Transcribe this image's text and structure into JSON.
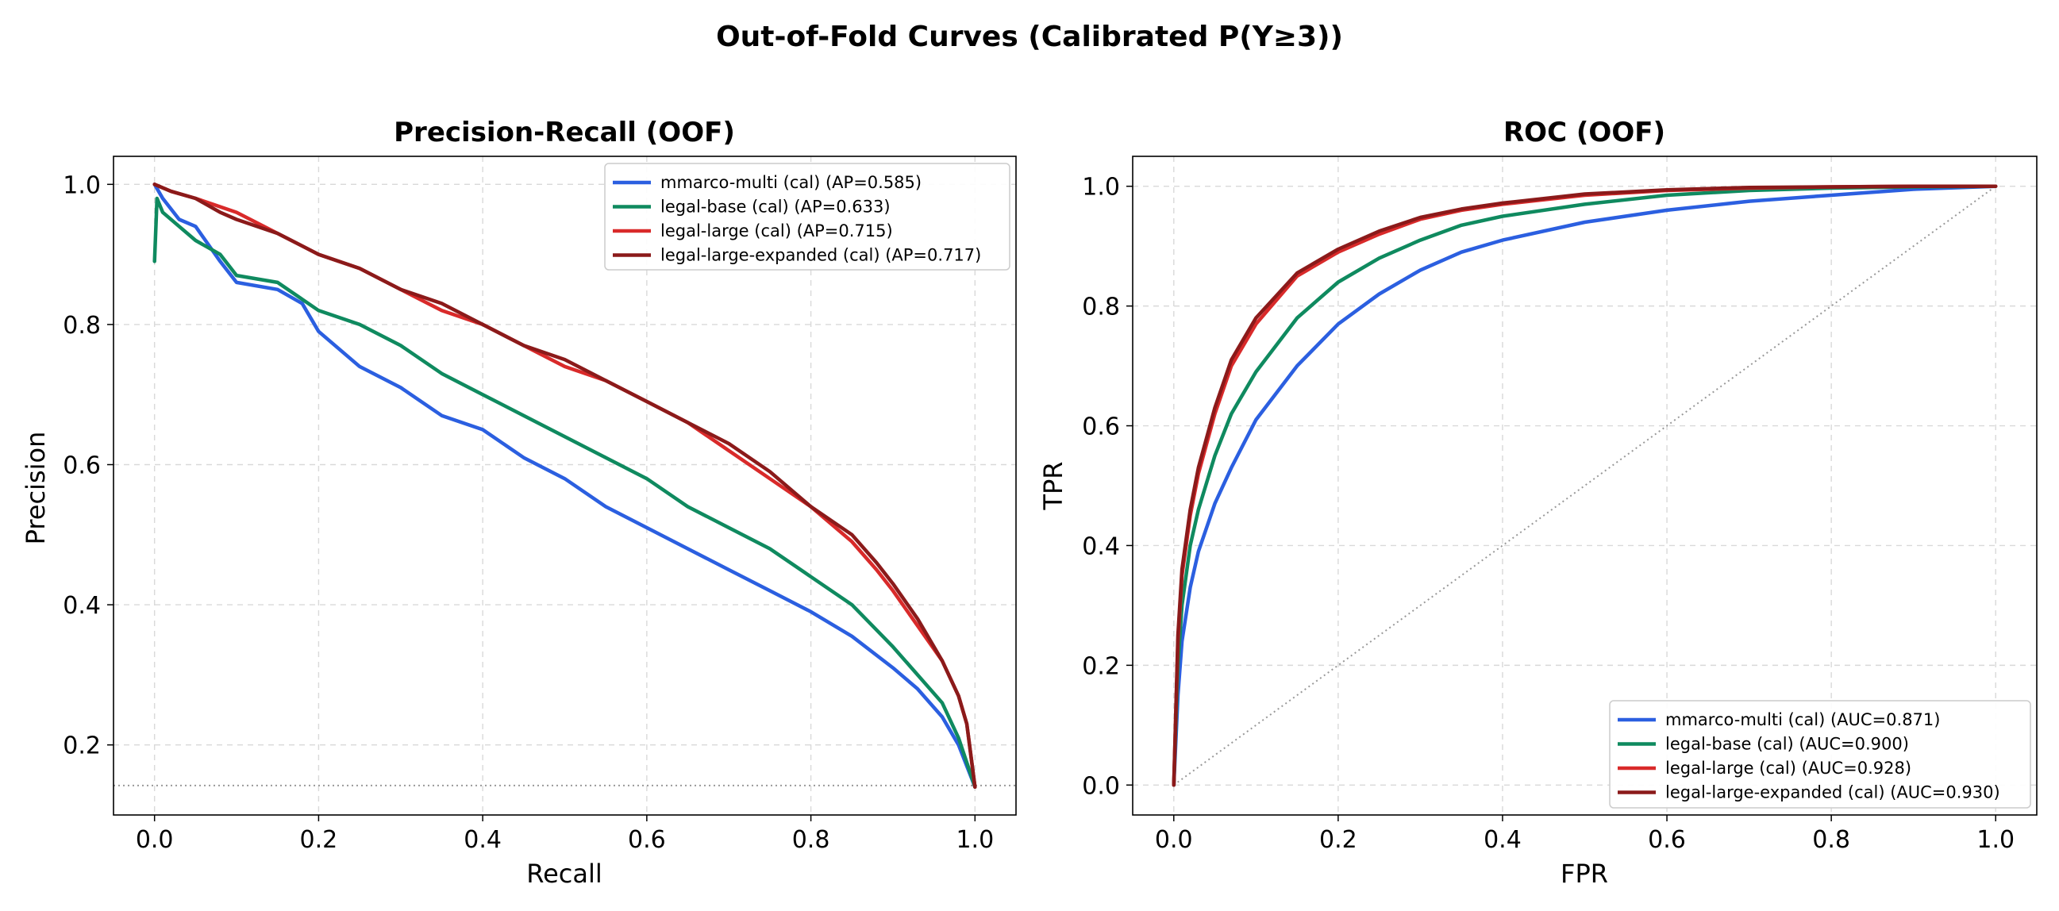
{
  "title": "Out-of-Fold Curves (Calibrated P(Y≥3))",
  "colors": {
    "mmarco-multi": "#2b5fe0",
    "legal-base": "#0f8a5f",
    "legal-large": "#d92a2a",
    "legal-large-expanded": "#8b1a1a"
  },
  "chart_data": [
    {
      "type": "line",
      "title": "Precision-Recall (OOF)",
      "xlabel": "Recall",
      "ylabel": "Precision",
      "xlim": [
        -0.05,
        1.05
      ],
      "ylim": [
        0.1,
        1.04
      ],
      "xticks": [
        "0.0",
        "0.2",
        "0.4",
        "0.6",
        "0.8",
        "1.0"
      ],
      "yticks": [
        "0.2",
        "0.4",
        "0.6",
        "0.8",
        "1.0"
      ],
      "grid": true,
      "legend_position": "top-right",
      "baseline": {
        "style": "dotted",
        "y": 0.142
      },
      "series": [
        {
          "name": "mmarco-multi (cal) (AP=0.585)",
          "color": "#2b5fe0",
          "x": [
            0.0,
            0.01,
            0.03,
            0.05,
            0.08,
            0.1,
            0.15,
            0.18,
            0.2,
            0.25,
            0.3,
            0.35,
            0.4,
            0.45,
            0.5,
            0.55,
            0.6,
            0.65,
            0.7,
            0.75,
            0.8,
            0.85,
            0.9,
            0.93,
            0.96,
            0.98,
            1.0
          ],
          "y": [
            1.0,
            0.98,
            0.95,
            0.94,
            0.89,
            0.86,
            0.85,
            0.83,
            0.79,
            0.74,
            0.71,
            0.67,
            0.65,
            0.61,
            0.58,
            0.54,
            0.51,
            0.48,
            0.45,
            0.42,
            0.39,
            0.355,
            0.31,
            0.28,
            0.24,
            0.2,
            0.14
          ]
        },
        {
          "name": "legal-base (cal) (AP=0.633)",
          "color": "#0f8a5f",
          "x": [
            0.0,
            0.003,
            0.01,
            0.03,
            0.05,
            0.08,
            0.1,
            0.15,
            0.2,
            0.25,
            0.3,
            0.35,
            0.4,
            0.45,
            0.5,
            0.55,
            0.6,
            0.65,
            0.7,
            0.75,
            0.8,
            0.85,
            0.9,
            0.93,
            0.96,
            0.98,
            1.0
          ],
          "y": [
            0.89,
            0.98,
            0.96,
            0.94,
            0.92,
            0.9,
            0.87,
            0.86,
            0.82,
            0.8,
            0.77,
            0.73,
            0.7,
            0.67,
            0.64,
            0.61,
            0.58,
            0.54,
            0.51,
            0.48,
            0.44,
            0.4,
            0.34,
            0.3,
            0.26,
            0.21,
            0.14
          ]
        },
        {
          "name": "legal-large (cal) (AP=0.715)",
          "color": "#d92a2a",
          "x": [
            0.0,
            0.02,
            0.05,
            0.1,
            0.15,
            0.2,
            0.25,
            0.3,
            0.35,
            0.4,
            0.45,
            0.5,
            0.55,
            0.6,
            0.65,
            0.7,
            0.75,
            0.8,
            0.85,
            0.88,
            0.9,
            0.93,
            0.96,
            0.98,
            0.99,
            1.0
          ],
          "y": [
            1.0,
            0.99,
            0.98,
            0.96,
            0.93,
            0.9,
            0.88,
            0.85,
            0.82,
            0.8,
            0.77,
            0.74,
            0.72,
            0.69,
            0.66,
            0.62,
            0.58,
            0.54,
            0.49,
            0.45,
            0.42,
            0.37,
            0.32,
            0.27,
            0.23,
            0.14
          ]
        },
        {
          "name": "legal-large-expanded (cal) (AP=0.717)",
          "color": "#8b1a1a",
          "x": [
            0.0,
            0.02,
            0.05,
            0.08,
            0.1,
            0.15,
            0.2,
            0.25,
            0.3,
            0.35,
            0.4,
            0.45,
            0.5,
            0.55,
            0.6,
            0.65,
            0.7,
            0.75,
            0.8,
            0.85,
            0.88,
            0.9,
            0.93,
            0.96,
            0.98,
            0.99,
            1.0
          ],
          "y": [
            1.0,
            0.99,
            0.98,
            0.96,
            0.95,
            0.93,
            0.9,
            0.88,
            0.85,
            0.83,
            0.8,
            0.77,
            0.75,
            0.72,
            0.69,
            0.66,
            0.63,
            0.59,
            0.54,
            0.5,
            0.46,
            0.43,
            0.38,
            0.32,
            0.27,
            0.23,
            0.14
          ]
        }
      ]
    },
    {
      "type": "line",
      "title": "ROC (OOF)",
      "xlabel": "FPR",
      "ylabel": "TPR",
      "xlim": [
        -0.05,
        1.05
      ],
      "ylim": [
        -0.05,
        1.05
      ],
      "xticks": [
        "0.0",
        "0.2",
        "0.4",
        "0.6",
        "0.8",
        "1.0"
      ],
      "yticks": [
        "0.0",
        "0.2",
        "0.4",
        "0.6",
        "0.8",
        "1.0"
      ],
      "grid": true,
      "legend_position": "bottom-right",
      "diagonal": {
        "style": "dotted"
      },
      "series": [
        {
          "name": "mmarco-multi (cal) (AUC=0.871)",
          "color": "#2b5fe0",
          "x": [
            0.0,
            0.005,
            0.01,
            0.02,
            0.03,
            0.05,
            0.07,
            0.1,
            0.15,
            0.2,
            0.25,
            0.3,
            0.35,
            0.4,
            0.5,
            0.6,
            0.7,
            0.8,
            0.9,
            1.0
          ],
          "y": [
            0.0,
            0.15,
            0.24,
            0.33,
            0.39,
            0.47,
            0.53,
            0.61,
            0.7,
            0.77,
            0.82,
            0.86,
            0.89,
            0.91,
            0.94,
            0.96,
            0.975,
            0.985,
            0.995,
            1.0
          ]
        },
        {
          "name": "legal-base (cal) (AUC=0.900)",
          "color": "#0f8a5f",
          "x": [
            0.0,
            0.005,
            0.01,
            0.02,
            0.03,
            0.05,
            0.07,
            0.1,
            0.15,
            0.2,
            0.25,
            0.3,
            0.35,
            0.4,
            0.5,
            0.6,
            0.7,
            0.8,
            0.9,
            1.0
          ],
          "y": [
            0.0,
            0.2,
            0.3,
            0.4,
            0.46,
            0.55,
            0.62,
            0.69,
            0.78,
            0.84,
            0.88,
            0.91,
            0.935,
            0.95,
            0.97,
            0.985,
            0.993,
            0.997,
            0.999,
            1.0
          ]
        },
        {
          "name": "legal-large (cal) (AUC=0.928)",
          "color": "#d92a2a",
          "x": [
            0.0,
            0.005,
            0.01,
            0.02,
            0.03,
            0.05,
            0.07,
            0.1,
            0.15,
            0.2,
            0.25,
            0.3,
            0.35,
            0.4,
            0.5,
            0.6,
            0.7,
            0.8,
            0.9,
            1.0
          ],
          "y": [
            0.0,
            0.24,
            0.35,
            0.45,
            0.52,
            0.62,
            0.7,
            0.77,
            0.85,
            0.89,
            0.92,
            0.945,
            0.96,
            0.97,
            0.985,
            0.993,
            0.997,
            0.999,
            1.0,
            1.0
          ]
        },
        {
          "name": "legal-large-expanded (cal) (AUC=0.930)",
          "color": "#8b1a1a",
          "x": [
            0.0,
            0.005,
            0.01,
            0.02,
            0.03,
            0.05,
            0.07,
            0.1,
            0.15,
            0.2,
            0.25,
            0.3,
            0.35,
            0.4,
            0.5,
            0.6,
            0.7,
            0.8,
            0.9,
            1.0
          ],
          "y": [
            0.0,
            0.25,
            0.36,
            0.46,
            0.53,
            0.63,
            0.71,
            0.78,
            0.855,
            0.895,
            0.925,
            0.948,
            0.962,
            0.972,
            0.987,
            0.994,
            0.998,
            0.999,
            1.0,
            1.0
          ]
        }
      ]
    }
  ]
}
